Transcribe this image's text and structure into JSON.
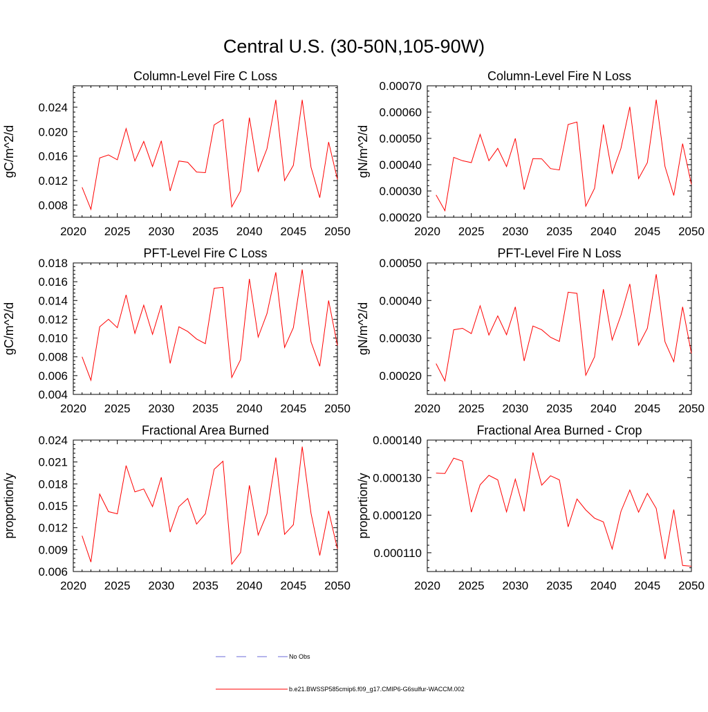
{
  "figure": {
    "title": "Central U.S. (30-50N,105-90W)"
  },
  "legend": {
    "items": [
      {
        "label": "No Obs",
        "color": "#6a6ad8",
        "style": "dashed"
      },
      {
        "label": "b.e21.BWSSP585cmip6.f09_g17.CMIP6-G6sulfur-WACCM.002",
        "color": "#ff0000",
        "style": "solid"
      }
    ]
  },
  "colors": {
    "series": "#ff0000",
    "no_obs": "#6a6ad8",
    "axis": "#000000"
  },
  "chart_data": [
    {
      "type": "line",
      "title": "Column-Level Fire C Loss",
      "ylabel": "gC/m^2/d",
      "xlim": [
        2020,
        2050
      ],
      "ylim": [
        0.006,
        0.0275
      ],
      "xticks": [
        2020,
        2025,
        2030,
        2035,
        2040,
        2045,
        2050
      ],
      "xticklabels": [
        "2020",
        "2025",
        "2030",
        "2035",
        "2040",
        "2045",
        "2050"
      ],
      "yticks": [
        0.008,
        0.012,
        0.016,
        0.02,
        0.024
      ],
      "yticklabels": [
        "0.008",
        "0.012",
        "0.016",
        "0.020",
        "0.024"
      ],
      "x": [
        2021,
        2022,
        2023,
        2024,
        2025,
        2026,
        2027,
        2028,
        2029,
        2030,
        2031,
        2032,
        2033,
        2034,
        2035,
        2036,
        2037,
        2038,
        2039,
        2040,
        2041,
        2042,
        2043,
        2044,
        2045,
        2046,
        2047,
        2048,
        2049,
        2050
      ],
      "series": [
        {
          "values": [
            0.0109,
            0.0073,
            0.0157,
            0.0162,
            0.0154,
            0.0205,
            0.0152,
            0.0184,
            0.0143,
            0.0185,
            0.0103,
            0.0152,
            0.015,
            0.0134,
            0.0133,
            0.0211,
            0.022,
            0.0077,
            0.0103,
            0.0223,
            0.0135,
            0.0172,
            0.0252,
            0.012,
            0.0145,
            0.0252,
            0.0142,
            0.0092,
            0.0183,
            0.0122
          ]
        }
      ]
    },
    {
      "type": "line",
      "title": "Column-Level Fire N Loss",
      "ylabel": "gN/m^2/d",
      "xlim": [
        2020,
        2050
      ],
      "ylim": [
        0.0002,
        0.0007
      ],
      "xticks": [
        2020,
        2025,
        2030,
        2035,
        2040,
        2045,
        2050
      ],
      "xticklabels": [
        "2020",
        "2025",
        "2030",
        "2035",
        "2040",
        "2045",
        "2050"
      ],
      "yticks": [
        0.0002,
        0.0003,
        0.0004,
        0.0005,
        0.0006,
        0.0007
      ],
      "yticklabels": [
        "0.00020",
        "0.00030",
        "0.00040",
        "0.00050",
        "0.00060",
        "0.00070"
      ],
      "x": [
        2021,
        2022,
        2023,
        2024,
        2025,
        2026,
        2027,
        2028,
        2029,
        2030,
        2031,
        2032,
        2033,
        2034,
        2035,
        2036,
        2037,
        2038,
        2039,
        2040,
        2041,
        2042,
        2043,
        2044,
        2045,
        2046,
        2047,
        2048,
        2049,
        2050
      ],
      "series": [
        {
          "values": [
            0.000285,
            0.000225,
            0.000428,
            0.000415,
            0.000408,
            0.000515,
            0.000415,
            0.000462,
            0.000393,
            0.0005,
            0.000305,
            0.000423,
            0.000422,
            0.000385,
            0.00038,
            0.000553,
            0.000562,
            0.000242,
            0.00031,
            0.000553,
            0.000367,
            0.000462,
            0.00062,
            0.000347,
            0.000408,
            0.000647,
            0.000393,
            0.000283,
            0.00048,
            0.000325
          ]
        }
      ]
    },
    {
      "type": "line",
      "title": "PFT-Level Fire C Loss",
      "ylabel": "gC/m^2/d",
      "xlim": [
        2020,
        2050
      ],
      "ylim": [
        0.004,
        0.018
      ],
      "xticks": [
        2020,
        2025,
        2030,
        2035,
        2040,
        2045,
        2050
      ],
      "xticklabels": [
        "2020",
        "2025",
        "2030",
        "2035",
        "2040",
        "2045",
        "2050"
      ],
      "yticks": [
        0.004,
        0.006,
        0.008,
        0.01,
        0.012,
        0.014,
        0.016,
        0.018
      ],
      "yticklabels": [
        "0.004",
        "0.006",
        "0.008",
        "0.010",
        "0.012",
        "0.014",
        "0.016",
        "0.018"
      ],
      "x": [
        2021,
        2022,
        2023,
        2024,
        2025,
        2026,
        2027,
        2028,
        2029,
        2030,
        2031,
        2032,
        2033,
        2034,
        2035,
        2036,
        2037,
        2038,
        2039,
        2040,
        2041,
        2042,
        2043,
        2044,
        2045,
        2046,
        2047,
        2048,
        2049,
        2050
      ],
      "series": [
        {
          "values": [
            0.008,
            0.0055,
            0.0112,
            0.012,
            0.0111,
            0.0146,
            0.0105,
            0.0135,
            0.0104,
            0.0135,
            0.0073,
            0.0112,
            0.0107,
            0.0099,
            0.0094,
            0.0153,
            0.0154,
            0.0058,
            0.0077,
            0.0163,
            0.0101,
            0.0126,
            0.017,
            0.009,
            0.0111,
            0.0173,
            0.0096,
            0.007,
            0.014,
            0.0092
          ]
        }
      ]
    },
    {
      "type": "line",
      "title": "PFT-Level Fire N Loss",
      "ylabel": "gN/m^2/d",
      "xlim": [
        2020,
        2050
      ],
      "ylim": [
        0.00015,
        0.0005
      ],
      "xticks": [
        2020,
        2025,
        2030,
        2035,
        2040,
        2045,
        2050
      ],
      "xticklabels": [
        "2020",
        "2025",
        "2030",
        "2035",
        "2040",
        "2045",
        "2050"
      ],
      "yticks": [
        0.0002,
        0.0003,
        0.0004,
        0.0005
      ],
      "yticklabels": [
        "0.00020",
        "0.00030",
        "0.00040",
        "0.00050"
      ],
      "x": [
        2021,
        2022,
        2023,
        2024,
        2025,
        2026,
        2027,
        2028,
        2029,
        2030,
        2031,
        2032,
        2033,
        2034,
        2035,
        2036,
        2037,
        2038,
        2039,
        2040,
        2041,
        2042,
        2043,
        2044,
        2045,
        2046,
        2047,
        2048,
        2049,
        2050
      ],
      "series": [
        {
          "values": [
            0.000232,
            0.000186,
            0.000322,
            0.000326,
            0.000312,
            0.000386,
            0.000308,
            0.000359,
            0.000309,
            0.000383,
            0.000239,
            0.000332,
            0.000322,
            0.000302,
            0.000291,
            0.000422,
            0.000419,
            0.000201,
            0.00025,
            0.00043,
            0.000295,
            0.000361,
            0.000444,
            0.000281,
            0.000326,
            0.00047,
            0.00029,
            0.000237,
            0.000383,
            0.000259
          ]
        }
      ]
    },
    {
      "type": "line",
      "title": "Fractional Area Burned",
      "ylabel": "proportion/y",
      "xlim": [
        2020,
        2050
      ],
      "ylim": [
        0.006,
        0.024
      ],
      "xticks": [
        2020,
        2025,
        2030,
        2035,
        2040,
        2045,
        2050
      ],
      "xticklabels": [
        "2020",
        "2025",
        "2030",
        "2035",
        "2040",
        "2045",
        "2050"
      ],
      "yticks": [
        0.006,
        0.009,
        0.012,
        0.015,
        0.018,
        0.021,
        0.024
      ],
      "yticklabels": [
        "0.006",
        "0.009",
        "0.012",
        "0.015",
        "0.018",
        "0.021",
        "0.024"
      ],
      "x": [
        2021,
        2022,
        2023,
        2024,
        2025,
        2026,
        2027,
        2028,
        2029,
        2030,
        2031,
        2032,
        2033,
        2034,
        2035,
        2036,
        2037,
        2038,
        2039,
        2040,
        2041,
        2042,
        2043,
        2044,
        2045,
        2046,
        2047,
        2048,
        2049,
        2050
      ],
      "series": [
        {
          "values": [
            0.0109,
            0.0073,
            0.0166,
            0.0142,
            0.0139,
            0.0205,
            0.0169,
            0.0173,
            0.0149,
            0.0189,
            0.0114,
            0.0149,
            0.016,
            0.0125,
            0.0139,
            0.02,
            0.0211,
            0.007,
            0.0086,
            0.0178,
            0.011,
            0.0139,
            0.0216,
            0.0111,
            0.0124,
            0.0231,
            0.014,
            0.0082,
            0.0143,
            0.0091
          ]
        }
      ]
    },
    {
      "type": "line",
      "title": "Fractional Area Burned - Crop",
      "ylabel": "proportion/y",
      "xlim": [
        2020,
        2050
      ],
      "ylim": [
        0.000105,
        0.00014
      ],
      "xticks": [
        2020,
        2025,
        2030,
        2035,
        2040,
        2045,
        2050
      ],
      "xticklabels": [
        "2020",
        "2025",
        "2030",
        "2035",
        "2040",
        "2045",
        "2050"
      ],
      "yticks": [
        0.00011,
        0.00012,
        0.00013,
        0.00014
      ],
      "yticklabels": [
        "0.000110",
        "0.000120",
        "0.000130",
        "0.000140"
      ],
      "x": [
        2021,
        2022,
        2023,
        2024,
        2025,
        2026,
        2027,
        2028,
        2029,
        2030,
        2031,
        2032,
        2033,
        2034,
        2035,
        2036,
        2037,
        2038,
        2039,
        2040,
        2041,
        2042,
        2043,
        2044,
        2045,
        2046,
        2047,
        2048,
        2049,
        2050
      ],
      "series": [
        {
          "values": [
            0.0001312,
            0.0001311,
            0.0001352,
            0.0001344,
            0.0001208,
            0.0001281,
            0.0001306,
            0.0001294,
            0.0001209,
            0.0001296,
            0.000121,
            0.0001367,
            0.000128,
            0.0001305,
            0.0001294,
            0.0001169,
            0.0001243,
            0.0001214,
            0.0001192,
            0.0001182,
            0.000111,
            0.000121,
            0.0001267,
            0.0001208,
            0.0001258,
            0.0001218,
            0.0001083,
            0.0001215,
            0.0001066,
            0.0001064
          ]
        }
      ]
    }
  ]
}
